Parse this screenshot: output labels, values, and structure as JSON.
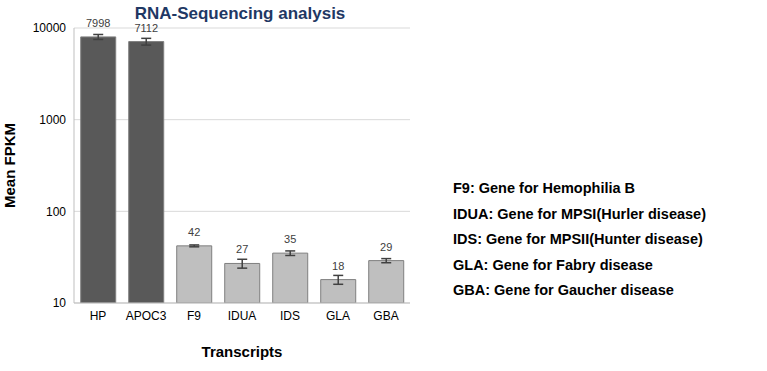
{
  "chart_data": {
    "type": "bar",
    "title": "RNA-Sequencing analysis",
    "x_label": "Transcripts",
    "y_label": "Mean FPKM",
    "categories": [
      "HP",
      "APOC3",
      "F9",
      "IDUA",
      "IDS",
      "GLA",
      "GBA"
    ],
    "values": [
      7998,
      7112,
      42,
      27,
      35,
      18,
      29
    ],
    "errors": [
      500,
      600,
      1,
      3,
      2,
      2,
      1.5
    ],
    "colors": [
      "#595959",
      "#595959",
      "#bfbfbf",
      "#bfbfbf",
      "#bfbfbf",
      "#bfbfbf",
      "#bfbfbf"
    ],
    "log": "y",
    "ylim": [
      10,
      10000
    ],
    "yticks": [
      10,
      100,
      1000,
      10000
    ],
    "grid": true,
    "data_labels": true,
    "annotations": [
      "F9: Gene for Hemophilia B",
      "IDUA: Gene for MPSI(Hurler disease)",
      "IDS: Gene for MPSII(Hunter disease)",
      "GLA: Gene for Fabry disease",
      "GBA: Gene for Gaucher disease"
    ]
  }
}
